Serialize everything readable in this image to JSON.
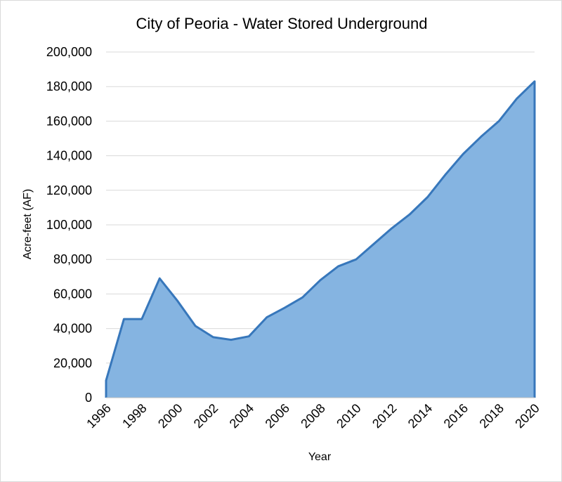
{
  "chart_data": {
    "type": "area",
    "title": "City of Peoria - Water Stored Underground",
    "xlabel": "Year",
    "ylabel": "Acre-feet (AF)",
    "xlim": [
      1996,
      2020
    ],
    "ylim": [
      0,
      200000
    ],
    "y_ticks": [
      0,
      20000,
      40000,
      60000,
      80000,
      100000,
      120000,
      140000,
      160000,
      180000,
      200000
    ],
    "y_tick_labels": [
      "0",
      "20,000",
      "40,000",
      "60,000",
      "80,000",
      "100,000",
      "120,000",
      "140,000",
      "160,000",
      "180,000",
      "200,000"
    ],
    "x_ticks": [
      1996,
      1998,
      2000,
      2002,
      2004,
      2006,
      2008,
      2010,
      2012,
      2014,
      2016,
      2018,
      2020
    ],
    "x_tick_labels": [
      "1996",
      "1998",
      "2000",
      "2002",
      "2004",
      "2006",
      "2008",
      "2010",
      "2012",
      "2014",
      "2016",
      "2018",
      "2020"
    ],
    "grid": true,
    "colors": {
      "fill": "#85b4e1",
      "line": "#3777bb",
      "grid": "#d9d9d9"
    },
    "series": [
      {
        "x": [
          1996,
          1997,
          1998,
          1999,
          2000,
          2001,
          2002,
          2003,
          2004,
          2005,
          2006,
          2007,
          2008,
          2009,
          2010,
          2011,
          2012,
          2013,
          2014,
          2015,
          2016,
          2017,
          2018,
          2019,
          2020
        ],
        "values": [
          10000,
          45500,
          45500,
          69000,
          56000,
          41500,
          35000,
          33500,
          35500,
          46500,
          52000,
          58000,
          68000,
          76000,
          80000,
          89000,
          98000,
          106000,
          116000,
          129000,
          141000,
          151000,
          160000,
          173000,
          183000
        ]
      }
    ]
  }
}
